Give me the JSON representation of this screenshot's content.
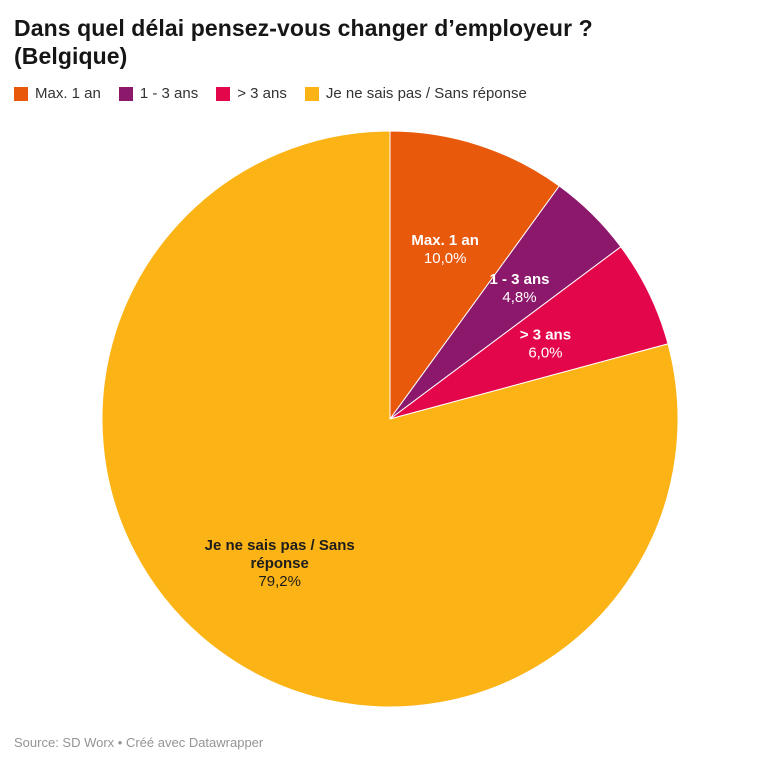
{
  "header": {
    "title_line1": "Dans quel délai pensez-vous changer d’employeur ?",
    "title_line2": "(Belgique)"
  },
  "footer": {
    "text": "Source: SD Worx • Créé avec Datawrapper"
  },
  "chart_data": {
    "type": "pie",
    "title": "Dans quel délai pensez-vous changer d’employeur ? (Belgique)",
    "legend_position": "top",
    "start_angle_deg": 0,
    "direction": "clockwise",
    "slices": [
      {
        "label": "Max. 1 an",
        "label_lines": [
          "Max. 1 an"
        ],
        "value": 10.0,
        "display": "10,0%",
        "color": "#e8590c",
        "text_color": "#ffffff"
      },
      {
        "label": "1 - 3 ans",
        "label_lines": [
          "1 - 3 ans"
        ],
        "value": 4.8,
        "display": "4,8%",
        "color": "#8c186c",
        "text_color": "#ffffff"
      },
      {
        "label": "> 3 ans",
        "label_lines": [
          "> 3 ans"
        ],
        "value": 6.0,
        "display": "6,0%",
        "color": "#e4064a",
        "text_color": "#ffffff"
      },
      {
        "label": "Je ne sais pas / Sans réponse",
        "label_lines": [
          "Je ne sais pas / Sans",
          "réponse"
        ],
        "value": 79.2,
        "display": "79,2%",
        "color": "#fcb315",
        "text_color": "#1d1d1d"
      }
    ]
  }
}
